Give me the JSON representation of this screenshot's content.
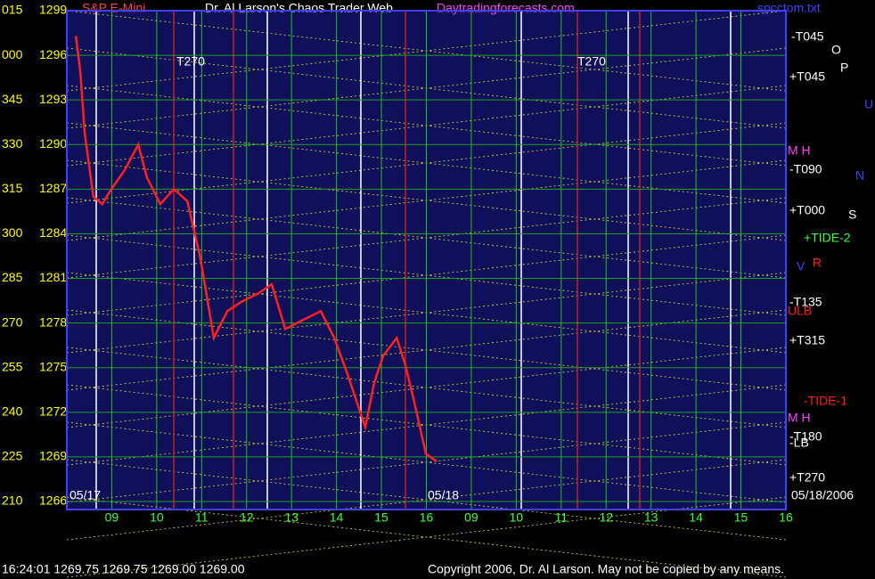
{
  "chart_data": {
    "type": "line",
    "title": "Dr. Al Larson's Chaos Trader Web",
    "site": "Daytradingforecasts.com",
    "instrument": "S&P E-Mini",
    "file": "spcctom.txt",
    "color": "#ff2020",
    "x": [
      0.2,
      0.3,
      0.4,
      0.59,
      0.79,
      0.99,
      1.29,
      1.59,
      1.78,
      2.08,
      2.38,
      2.68,
      2.97,
      3.27,
      3.57,
      3.87,
      4.26,
      4.56,
      4.86,
      5.25,
      5.65,
      5.95,
      6.24,
      6.64,
      6.84,
      7.04,
      7.34,
      7.53,
      7.73,
      7.99,
      8.23
    ],
    "values": [
      1297.3,
      1294.9,
      1290.7,
      1286.5,
      1286,
      1287,
      1288.3,
      1290,
      1287.8,
      1286,
      1287,
      1286.2,
      1282.4,
      1277,
      1278.8,
      1279.4,
      1280,
      1280.6,
      1277.6,
      1278.2,
      1278.8,
      1277,
      1274.6,
      1271,
      1274,
      1275.8,
      1277,
      1275.2,
      1272.7,
      1269.2,
      1268.7
    ],
    "ylim": [
      1266,
      1299
    ],
    "yticks": [
      1299,
      1296,
      1293,
      1290,
      1287,
      1284,
      1281,
      1278,
      1275,
      1272,
      1269,
      1266
    ],
    "degree_labels": [
      "015",
      "000",
      "345",
      "330",
      "315",
      "300",
      "285",
      "270",
      "255",
      "240",
      "225",
      "210"
    ],
    "xlim": [
      0,
      16
    ],
    "xticks": [
      {
        "value": 1,
        "label": "09"
      },
      {
        "value": 2,
        "label": "10"
      },
      {
        "value": 3,
        "label": "11"
      },
      {
        "value": 4,
        "label": "12"
      },
      {
        "value": 5,
        "label": "13"
      },
      {
        "value": 6,
        "label": "14"
      },
      {
        "value": 7,
        "label": "15"
      },
      {
        "value": 8,
        "label": "16"
      },
      {
        "value": 9,
        "label": "09"
      },
      {
        "value": 10,
        "label": "10"
      },
      {
        "value": 11,
        "label": "11"
      },
      {
        "value": 12,
        "label": "12"
      },
      {
        "value": 13,
        "label": "13"
      },
      {
        "value": 14,
        "label": "14"
      },
      {
        "value": 15,
        "label": "15"
      },
      {
        "value": 16,
        "label": "16"
      }
    ],
    "grid": true,
    "dates": [
      "05/17",
      "05/18",
      "05/18/2006"
    ],
    "annotations": [
      "-T045",
      "+T045",
      "M H",
      "-T090",
      "+T000",
      "+TIDE-2",
      "V",
      "R",
      "-T135",
      "ULB",
      "+T315",
      "-TIDE-1",
      "M H",
      "-T180",
      "-LB",
      "+T270",
      "T270",
      "T270",
      "O",
      "P",
      "N",
      "S",
      "U"
    ],
    "status": "16:24:01  1269.75 1269.75 1269.00 1269.00",
    "copyright": "Copyright 2006, Dr. Al Larson. May not be copied by any means."
  }
}
